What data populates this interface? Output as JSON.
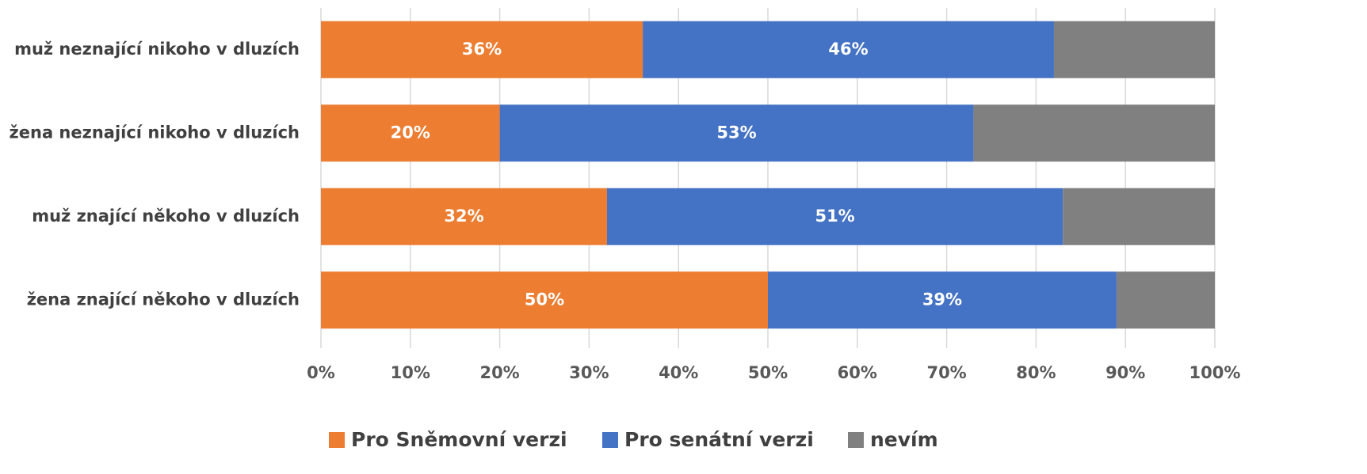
{
  "chart_data": {
    "type": "stacked_barh",
    "categories": [
      "muž neznající nikoho v dluzích",
      "žena neznající nikoho v dluzích",
      "muž znající někoho v dluzích",
      "žena znající někoho v dluzích"
    ],
    "series": [
      {
        "name": "Pro Sněmovní verzi",
        "color": "#ed7d31",
        "values": [
          36,
          20,
          32,
          50
        ],
        "value_labels": [
          "36%",
          "20%",
          "32%",
          "50%"
        ]
      },
      {
        "name": "Pro senátní verzi",
        "color": "#4472c4",
        "values": [
          46,
          53,
          51,
          39
        ],
        "value_labels": [
          "46%",
          "53%",
          "51%",
          "39%"
        ]
      },
      {
        "name": "nevím",
        "color": "#808080",
        "values": [
          18,
          27,
          17,
          11
        ]
      }
    ],
    "xlim": [
      0,
      100
    ],
    "xticks": [
      {
        "value": 0,
        "label": "0%"
      },
      {
        "value": 10,
        "label": "10%"
      },
      {
        "value": 20,
        "label": "20%"
      },
      {
        "value": 30,
        "label": "30%"
      },
      {
        "value": 40,
        "label": "40%"
      },
      {
        "value": 50,
        "label": "50%"
      },
      {
        "value": 60,
        "label": "60%"
      },
      {
        "value": 70,
        "label": "70%"
      },
      {
        "value": 80,
        "label": "80%"
      },
      {
        "value": 90,
        "label": "90%"
      },
      {
        "value": 100,
        "label": "100%"
      }
    ],
    "grid": true,
    "legend": "bottom"
  }
}
